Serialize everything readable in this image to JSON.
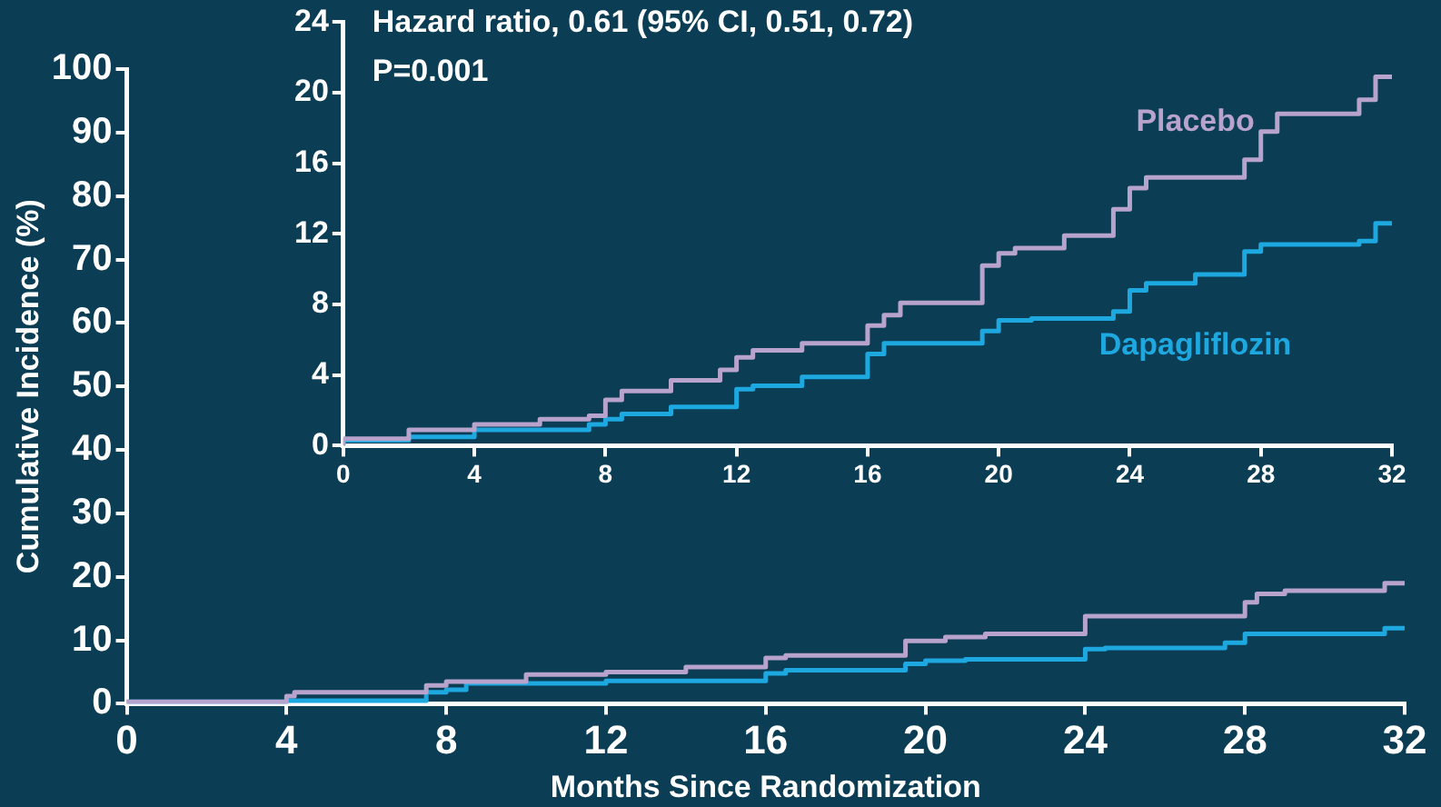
{
  "chart_data": [
    {
      "type": "step",
      "ylabel": "Cumulative Incidence (%)",
      "xlabel": "Months Since Randomization",
      "xlim": [
        0,
        32
      ],
      "xticks": [
        0,
        4,
        8,
        12,
        16,
        20,
        24,
        28,
        32
      ],
      "ylim": [
        0,
        100
      ],
      "yticks": [
        0,
        10,
        20,
        30,
        40,
        50,
        60,
        70,
        80,
        90,
        100
      ],
      "grid": false,
      "legend": false,
      "marker": "none",
      "series": [
        {
          "color": "#b7a3cc",
          "x": [
            0,
            4,
            4.2,
            7.5,
            8,
            10,
            12,
            14,
            16,
            16.5,
            19.5,
            20.5,
            21.5,
            24,
            24.5,
            28,
            28.3,
            29,
            31.5,
            32
          ],
          "values": [
            0,
            0.3,
            1.2,
            1.8,
            2.9,
            3.5,
            4.6,
            5,
            5.8,
            7.2,
            7.6,
            9.9,
            10.5,
            11,
            13.8,
            13.8,
            16,
            17.3,
            17.8,
            19
          ]
        },
        {
          "color": "#1ea8e0",
          "x": [
            0,
            4,
            7.5,
            8,
            8.5,
            12,
            16,
            16.5,
            19.5,
            20,
            21,
            24,
            24.5,
            27.5,
            28,
            29,
            31.5,
            32
          ],
          "values": [
            0,
            0.3,
            0.5,
            1.8,
            2.2,
            3.2,
            3.6,
            4.8,
            5.3,
            6.3,
            6.8,
            7,
            8.6,
            8.8,
            9.6,
            11,
            11,
            11.9
          ]
        }
      ]
    },
    {
      "type": "step",
      "xlim": [
        0,
        32
      ],
      "xticks": [
        0,
        4,
        8,
        12,
        16,
        20,
        24,
        28,
        32
      ],
      "ylim": [
        0,
        24
      ],
      "yticks": [
        0,
        4,
        8,
        12,
        16,
        20,
        24
      ],
      "grid": false,
      "legend": false,
      "marker": "none",
      "annotations": [
        "Hazard ratio, 0.61 (95% CI, 0.51, 0.72)",
        "P=0.001"
      ],
      "series": [
        {
          "name": "Placebo",
          "color": "#b7a3cc",
          "x": [
            0,
            2,
            4,
            6,
            7.5,
            8,
            8.5,
            10,
            11.5,
            12,
            12.5,
            14,
            16,
            16.5,
            17,
            19.5,
            20,
            20.5,
            22,
            23.5,
            24,
            24.5,
            27.5,
            28,
            28.5,
            29.5,
            31,
            31.5,
            32
          ],
          "values": [
            0,
            0.4,
            0.9,
            1.2,
            1.5,
            1.7,
            2.6,
            3.1,
            3.7,
            4.3,
            5,
            5.4,
            5.8,
            6.8,
            7.4,
            8.1,
            10.2,
            10.9,
            11.2,
            11.9,
            13.4,
            14.6,
            15.2,
            16.2,
            17.8,
            18.8,
            18.8,
            19.6,
            20.9
          ]
        },
        {
          "name": "Dapagliflozin",
          "color": "#1ea8e0",
          "x": [
            0,
            2,
            4,
            7.5,
            8,
            8.5,
            10,
            12,
            12.5,
            14,
            16,
            16.5,
            19.5,
            20,
            21,
            23.5,
            24,
            24.5,
            26,
            27.5,
            28,
            28.5,
            31,
            31.5,
            32
          ],
          "values": [
            0,
            0.3,
            0.5,
            0.9,
            1.2,
            1.5,
            1.8,
            2.2,
            3.2,
            3.4,
            3.9,
            5.2,
            5.8,
            6.5,
            7.1,
            7.2,
            7.6,
            8.8,
            9.2,
            9.7,
            11,
            11.4,
            11.4,
            11.6,
            12.6
          ]
        }
      ]
    }
  ]
}
